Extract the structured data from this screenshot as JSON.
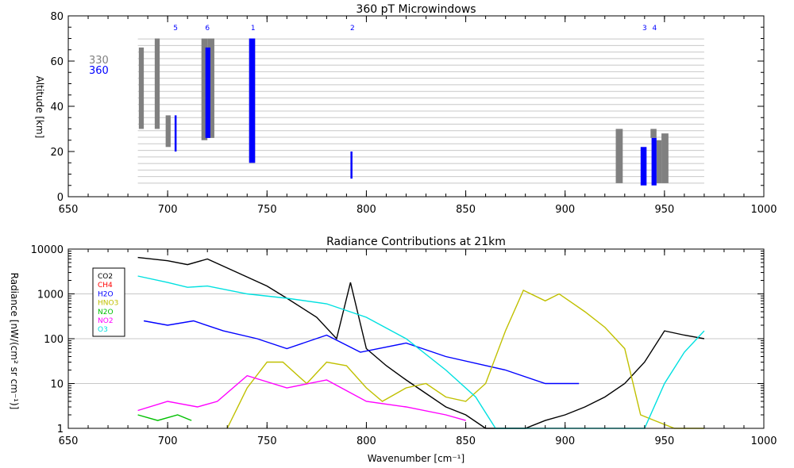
{
  "chart_data": [
    {
      "type": "bar",
      "title": "360 pT Microwindows",
      "xlabel": "",
      "ylabel": "Altitude [km]",
      "xlim": [
        650,
        1000
      ],
      "ylim": [
        0,
        80
      ],
      "x_ticks": [
        650,
        700,
        750,
        800,
        850,
        900,
        950,
        1000
      ],
      "y_ticks": [
        0,
        20,
        40,
        60,
        80
      ],
      "grid": "horizontal lines every ~3 km from 6 to 70 km, spanning 685–970 cm-1",
      "legend": {
        "placement": "left",
        "entries": [
          {
            "name": "330",
            "color": "#808080"
          },
          {
            "name": "360",
            "color": "#0000ff"
          }
        ]
      },
      "microwindow_labels": [
        {
          "label": "5",
          "x": 704
        },
        {
          "label": "6",
          "x": 720
        },
        {
          "label": "1",
          "x": 743
        },
        {
          "label": "2",
          "x": 793
        },
        {
          "label": "3",
          "x": 940
        },
        {
          "label": "4",
          "x": 945
        }
      ],
      "series": [
        {
          "name": "330",
          "color": "#808080",
          "bars": [
            {
              "x0": 685.5,
              "x1": 688.0,
              "y0": 30,
              "y1": 66
            },
            {
              "x0": 693.5,
              "x1": 696.0,
              "y0": 30,
              "y1": 70
            },
            {
              "x0": 699.0,
              "x1": 701.5,
              "y0": 22,
              "y1": 36
            },
            {
              "x0": 717.0,
              "x1": 720.0,
              "y0": 25,
              "y1": 70
            },
            {
              "x0": 720.0,
              "x1": 723.5,
              "y0": 26,
              "y1": 70
            },
            {
              "x0": 741.0,
              "x1": 744.0,
              "y0": 15,
              "y1": 70
            },
            {
              "x0": 925.5,
              "x1": 929.0,
              "y0": 6,
              "y1": 30
            },
            {
              "x0": 943.0,
              "x1": 946.0,
              "y0": 26,
              "y1": 30
            },
            {
              "x0": 946.0,
              "x1": 948.5,
              "y0": 6,
              "y1": 25
            },
            {
              "x0": 948.5,
              "x1": 952.0,
              "y0": 6,
              "y1": 28
            }
          ]
        },
        {
          "name": "360",
          "color": "#0000ff",
          "bars": [
            {
              "x0": 703.5,
              "x1": 704.5,
              "y0": 20,
              "y1": 36
            },
            {
              "x0": 719.0,
              "x1": 721.5,
              "y0": 26,
              "y1": 66
            },
            {
              "x0": 741.0,
              "x1": 744.0,
              "y0": 15,
              "y1": 70
            },
            {
              "x0": 792.0,
              "x1": 793.0,
              "y0": 8,
              "y1": 20
            },
            {
              "x0": 938.0,
              "x1": 941.0,
              "y0": 5,
              "y1": 22
            },
            {
              "x0": 943.5,
              "x1": 946.0,
              "y0": 5,
              "y1": 26
            }
          ]
        }
      ]
    },
    {
      "type": "line",
      "title": "Radiance Contributions at 21km",
      "xlabel": "Wavenumber [cm⁻¹]",
      "ylabel": "Radiance [nW/(cm² sr cm⁻¹)]",
      "xlim": [
        650,
        1000
      ],
      "ylim": [
        1,
        10000
      ],
      "yscale": "log",
      "x_ticks": [
        650,
        700,
        750,
        800,
        850,
        900,
        950,
        1000
      ],
      "y_ticks": [
        1,
        10,
        100,
        1000,
        10000
      ],
      "grid": "horizontal gridlines at each decade",
      "legend": {
        "placement": "top-left"
      },
      "series": [
        {
          "name": "CO2",
          "color": "#000000",
          "x": [
            685,
            700,
            710,
            720,
            735,
            750,
            760,
            775,
            785,
            792,
            800,
            810,
            820,
            830,
            840,
            850,
            860,
            870,
            880,
            890,
            900,
            910,
            920,
            930,
            940,
            950,
            960,
            970
          ],
          "y": [
            6500,
            5500,
            4500,
            6000,
            3000,
            1500,
            800,
            300,
            100,
            1800,
            60,
            25,
            12,
            6,
            3,
            2,
            1,
            1,
            1,
            1.5,
            2,
            3,
            5,
            10,
            30,
            150,
            120,
            100
          ]
        },
        {
          "name": "CH4",
          "color": "#ff0000",
          "x": [],
          "y": []
        },
        {
          "name": "H2O",
          "color": "#0000ff",
          "x": [
            688,
            700,
            713,
            728,
            745,
            760,
            780,
            797,
            820,
            840,
            870,
            890,
            907
          ],
          "y": [
            250,
            200,
            250,
            150,
            100,
            60,
            120,
            50,
            80,
            40,
            20,
            10,
            10
          ]
        },
        {
          "name": "HNO3",
          "color": "#c0c000",
          "x": [
            730,
            740,
            750,
            758,
            770,
            780,
            790,
            800,
            808,
            820,
            830,
            840,
            850,
            860,
            870,
            879,
            890,
            897,
            910,
            920,
            930,
            938,
            945,
            955,
            965,
            970
          ],
          "y": [
            1,
            8,
            30,
            30,
            10,
            30,
            25,
            8,
            4,
            8,
            10,
            5,
            4,
            10,
            150,
            1200,
            700,
            1000,
            400,
            180,
            60,
            2,
            1.5,
            1,
            1,
            1
          ]
        },
        {
          "name": "N2O",
          "color": "#00c000",
          "x": [
            685,
            695,
            705,
            712
          ],
          "y": [
            2,
            1.5,
            2,
            1.5
          ]
        },
        {
          "name": "NO2",
          "color": "#ff00ff",
          "x": [
            685,
            700,
            715,
            725,
            740,
            760,
            780,
            800,
            820,
            840,
            850
          ],
          "y": [
            2.5,
            4,
            3,
            4,
            15,
            8,
            12,
            4,
            3,
            2,
            1.5
          ]
        },
        {
          "name": "O3",
          "color": "#00e0e0",
          "x": [
            685,
            700,
            710,
            720,
            740,
            760,
            780,
            800,
            820,
            840,
            855,
            865,
            940,
            950,
            960,
            970
          ],
          "y": [
            2500,
            1800,
            1400,
            1500,
            1000,
            800,
            600,
            300,
            100,
            20,
            5,
            1,
            1,
            10,
            50,
            150
          ]
        }
      ]
    }
  ]
}
